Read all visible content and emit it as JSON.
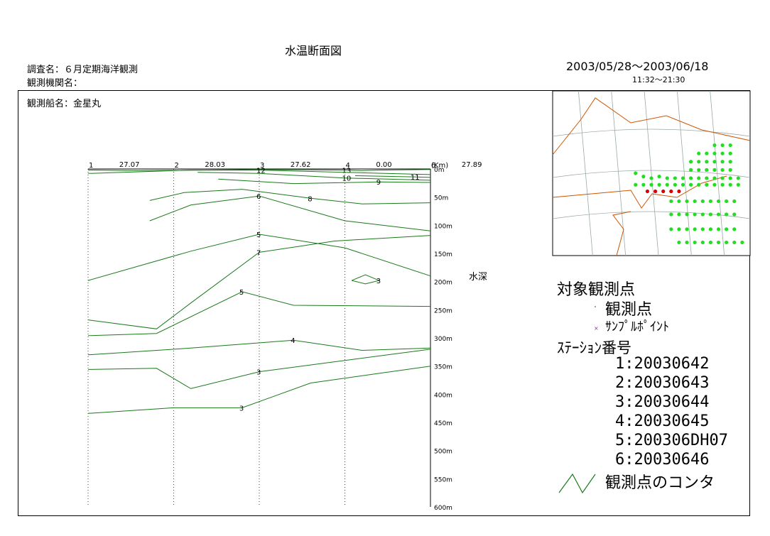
{
  "header": {
    "title": "水温断面図",
    "survey": "調査名：６月定期海洋観測",
    "agency": "観測機関名：",
    "date_range": "2003/05/28～2003/06/18",
    "time_range": "11:32～21:30",
    "ship": "観測船名：金星丸"
  },
  "legend": {
    "title": "対象観測点",
    "obs_point": "観測点",
    "sample_point": "ｻﾝﾌﾟﾙﾎﾟｲﾝﾄ",
    "station_title": "ｽﾃｰｼｮﾝ番号",
    "stations": [
      "1:20030642",
      "2:20030643",
      "3:20030644",
      "4:20030645",
      "5:200306DH07",
      "6:20030646"
    ],
    "contour": "観測点のコンタ"
  },
  "colors": {
    "contour": "#1a7a1a",
    "map_land": "#cc5500",
    "map_stations": "#22dd22",
    "map_section": "#dd0000",
    "map_grid": "#9aa8a8",
    "sample_marker": "#cc00cc"
  },
  "chart_data": {
    "type": "contour",
    "ylabel": "水深",
    "depth_unit": "m",
    "ylim": [
      0,
      600
    ],
    "y_ticks": [
      0,
      50,
      100,
      150,
      200,
      250,
      300,
      350,
      400,
      450,
      500,
      550,
      600
    ],
    "y_tick_labels": [
      "0m",
      "50m",
      "100m",
      "150m",
      "200m",
      "250m",
      "300m",
      "350m",
      "400m",
      "450m",
      "500m",
      "550m",
      "600m"
    ],
    "x_unit_label": "(Km)",
    "stations": [
      "1",
      "2",
      "3",
      "4",
      "6"
    ],
    "distances": [
      "27.07",
      "28.03",
      "27.62",
      "0.00",
      "27.89"
    ],
    "contours": [
      {
        "label": "13",
        "points": [
          [
            0,
            2
          ],
          [
            0.15,
            3
          ],
          [
            0.5,
            1
          ],
          [
            0.75,
            2
          ],
          [
            0.8,
            3
          ],
          [
            0.85,
            2
          ],
          [
            1,
            1
          ]
        ]
      },
      {
        "label": "12",
        "points": [
          [
            0,
            8
          ],
          [
            0.1,
            6
          ],
          [
            0.3,
            2
          ],
          [
            0.5,
            2
          ],
          [
            0.75,
            6
          ],
          [
            1,
            10
          ]
        ]
      },
      {
        "label": "11",
        "points": [
          [
            0.78,
            12
          ],
          [
            0.95,
            14
          ],
          [
            1,
            15
          ]
        ]
      },
      {
        "label": "10",
        "points": [
          [
            0.32,
            6
          ],
          [
            0.5,
            8
          ],
          [
            0.75,
            16
          ],
          [
            1,
            20
          ]
        ]
      },
      {
        "label": "9",
        "points": [
          [
            0.38,
            18
          ],
          [
            0.6,
            26
          ],
          [
            0.85,
            23
          ],
          [
            1,
            24
          ]
        ]
      },
      {
        "label": "8",
        "points": [
          [
            0.18,
            56
          ],
          [
            0.28,
            42
          ],
          [
            0.45,
            36
          ],
          [
            0.65,
            52
          ],
          [
            0.8,
            62
          ],
          [
            1,
            60
          ]
        ]
      },
      {
        "label": "6",
        "points": [
          [
            0.18,
            92
          ],
          [
            0.3,
            64
          ],
          [
            0.5,
            48
          ],
          [
            0.75,
            92
          ],
          [
            1,
            110
          ]
        ]
      },
      {
        "label": "5",
        "points": [
          [
            0,
            198
          ],
          [
            0.3,
            146
          ],
          [
            0.5,
            116
          ],
          [
            0.75,
            140
          ],
          [
            1,
            190
          ]
        ]
      },
      {
        "label": "3",
        "points": [
          [
            0.77,
            198
          ],
          [
            0.81,
            188
          ],
          [
            0.85,
            198
          ],
          [
            0.81,
            204
          ],
          [
            0.77,
            198
          ]
        ]
      },
      {
        "label": "7",
        "points": [
          [
            0,
            268
          ],
          [
            0.2,
            284
          ],
          [
            0.3,
            238
          ],
          [
            0.5,
            148
          ],
          [
            0.72,
            128
          ],
          [
            1,
            118
          ]
        ]
      },
      {
        "label": "5",
        "points": [
          [
            0,
            296
          ],
          [
            0.2,
            292
          ],
          [
            0.45,
            218
          ],
          [
            0.6,
            242
          ],
          [
            1,
            244
          ]
        ]
      },
      {
        "label": "4",
        "points": [
          [
            0,
            330
          ],
          [
            0.3,
            318
          ],
          [
            0.6,
            304
          ],
          [
            0.8,
            322
          ],
          [
            1,
            318
          ]
        ]
      },
      {
        "label": "3",
        "points": [
          [
            0,
            356
          ],
          [
            0.2,
            354
          ],
          [
            0.3,
            390
          ],
          [
            0.5,
            360
          ],
          [
            0.7,
            344
          ],
          [
            1,
            320
          ]
        ]
      },
      {
        "label": "3",
        "points": [
          [
            0,
            434
          ],
          [
            0.25,
            424
          ],
          [
            0.45,
            424
          ],
          [
            0.65,
            380
          ],
          [
            1,
            350
          ]
        ]
      }
    ]
  },
  "map": {
    "stations": [
      [
        0.42,
        0.5
      ],
      [
        0.46,
        0.52
      ],
      [
        0.5,
        0.53
      ],
      [
        0.54,
        0.52
      ],
      [
        0.58,
        0.53
      ],
      [
        0.62,
        0.53
      ],
      [
        0.66,
        0.53
      ],
      [
        0.7,
        0.53
      ],
      [
        0.74,
        0.53
      ],
      [
        0.78,
        0.53
      ],
      [
        0.82,
        0.53
      ],
      [
        0.86,
        0.53
      ],
      [
        0.9,
        0.53
      ],
      [
        0.94,
        0.53
      ],
      [
        0.42,
        0.57
      ],
      [
        0.46,
        0.57
      ],
      [
        0.5,
        0.57
      ],
      [
        0.54,
        0.57
      ],
      [
        0.58,
        0.57
      ],
      [
        0.62,
        0.57
      ],
      [
        0.66,
        0.57
      ],
      [
        0.7,
        0.57
      ],
      [
        0.74,
        0.57
      ],
      [
        0.78,
        0.57
      ],
      [
        0.82,
        0.57
      ],
      [
        0.86,
        0.57
      ],
      [
        0.9,
        0.57
      ],
      [
        0.94,
        0.57
      ],
      [
        0.7,
        0.48
      ],
      [
        0.74,
        0.48
      ],
      [
        0.78,
        0.48
      ],
      [
        0.82,
        0.48
      ],
      [
        0.86,
        0.48
      ],
      [
        0.9,
        0.48
      ],
      [
        0.7,
        0.43
      ],
      [
        0.74,
        0.43
      ],
      [
        0.78,
        0.43
      ],
      [
        0.82,
        0.43
      ],
      [
        0.86,
        0.43
      ],
      [
        0.9,
        0.43
      ],
      [
        0.74,
        0.38
      ],
      [
        0.78,
        0.38
      ],
      [
        0.82,
        0.38
      ],
      [
        0.86,
        0.38
      ],
      [
        0.9,
        0.38
      ],
      [
        0.82,
        0.33
      ],
      [
        0.86,
        0.33
      ],
      [
        0.9,
        0.33
      ],
      [
        0.6,
        0.67
      ],
      [
        0.64,
        0.67
      ],
      [
        0.68,
        0.67
      ],
      [
        0.72,
        0.67
      ],
      [
        0.76,
        0.67
      ],
      [
        0.8,
        0.67
      ],
      [
        0.84,
        0.67
      ],
      [
        0.88,
        0.67
      ],
      [
        0.92,
        0.67
      ],
      [
        0.6,
        0.75
      ],
      [
        0.64,
        0.75
      ],
      [
        0.68,
        0.75
      ],
      [
        0.72,
        0.75
      ],
      [
        0.76,
        0.75
      ],
      [
        0.8,
        0.75
      ],
      [
        0.84,
        0.75
      ],
      [
        0.88,
        0.75
      ],
      [
        0.92,
        0.75
      ],
      [
        0.6,
        0.84
      ],
      [
        0.64,
        0.84
      ],
      [
        0.68,
        0.84
      ],
      [
        0.72,
        0.84
      ],
      [
        0.76,
        0.84
      ],
      [
        0.8,
        0.84
      ],
      [
        0.84,
        0.84
      ],
      [
        0.88,
        0.84
      ],
      [
        0.92,
        0.84
      ],
      [
        0.64,
        0.92
      ],
      [
        0.68,
        0.92
      ],
      [
        0.72,
        0.92
      ],
      [
        0.76,
        0.92
      ],
      [
        0.8,
        0.92
      ],
      [
        0.84,
        0.92
      ],
      [
        0.88,
        0.92
      ],
      [
        0.92,
        0.92
      ],
      [
        0.96,
        0.92
      ]
    ],
    "section": [
      [
        0.48,
        0.61
      ],
      [
        0.52,
        0.61
      ],
      [
        0.56,
        0.61
      ],
      [
        0.6,
        0.61
      ],
      [
        0.64,
        0.61
      ]
    ]
  }
}
